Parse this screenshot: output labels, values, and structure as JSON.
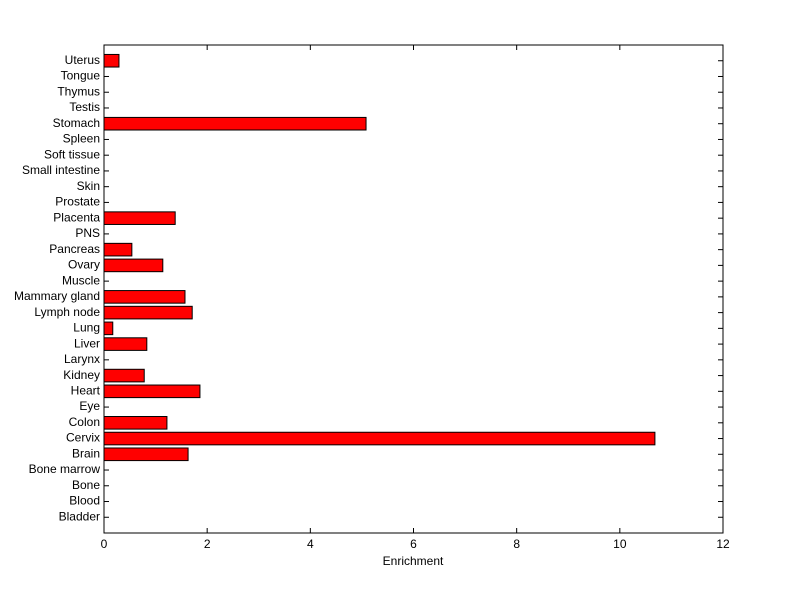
{
  "chart_data": {
    "type": "barh",
    "xlabel": "Enrichment",
    "categories": [
      "Bladder",
      "Blood",
      "Bone",
      "Bone marrow",
      "Brain",
      "Cervix",
      "Colon",
      "Eye",
      "Heart",
      "Kidney",
      "Larynx",
      "Liver",
      "Lung",
      "Lymph node",
      "Mammary gland",
      "Muscle",
      "Ovary",
      "Pancreas",
      "PNS",
      "Placenta",
      "Prostate",
      "Skin",
      "Small intestine",
      "Soft tissue",
      "Spleen",
      "Stomach",
      "Testis",
      "Thymus",
      "Tongue",
      "Uterus"
    ],
    "values": [
      0,
      0,
      0,
      0,
      1.63,
      10.68,
      1.22,
      0,
      1.86,
      0.78,
      0,
      0.83,
      0.17,
      1.71,
      1.57,
      0,
      1.14,
      0.54,
      0,
      1.38,
      0,
      0,
      0,
      0,
      0,
      5.08,
      0,
      0,
      0,
      0.29
    ],
    "color": "#ff0000",
    "xlim": [
      0,
      12
    ],
    "xticks": [
      0,
      2,
      4,
      6,
      8,
      10,
      12
    ],
    "grid": false
  }
}
